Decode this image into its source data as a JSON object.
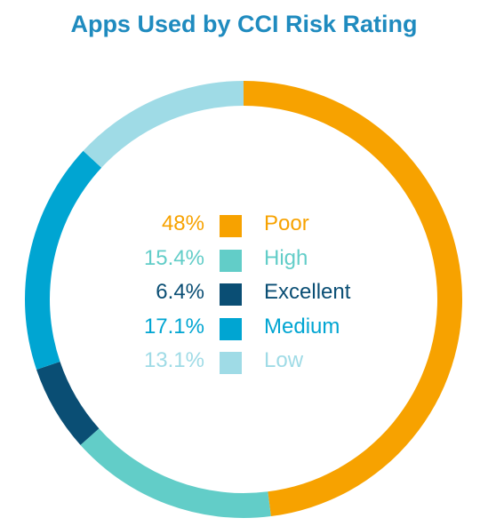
{
  "chart_data": {
    "type": "pie",
    "style": "donut",
    "title": "Apps Used by CCI Risk Rating",
    "slices": [
      {
        "label": "Poor",
        "value": 48,
        "display": "48%",
        "color": "#f7a200"
      },
      {
        "label": "High",
        "value": 15.4,
        "display": "15.4%",
        "color": "#62cdc8"
      },
      {
        "label": "Excellent",
        "value": 6.4,
        "display": "6.4%",
        "color": "#0a4e74"
      },
      {
        "label": "Medium",
        "value": 17.1,
        "display": "17.1%",
        "color": "#00a5d2"
      },
      {
        "label": "Low",
        "value": 13.1,
        "display": "13.1%",
        "color": "#9fdbe6"
      }
    ],
    "legend_position": "center"
  },
  "colors": {
    "title": "#1f8bbf"
  }
}
